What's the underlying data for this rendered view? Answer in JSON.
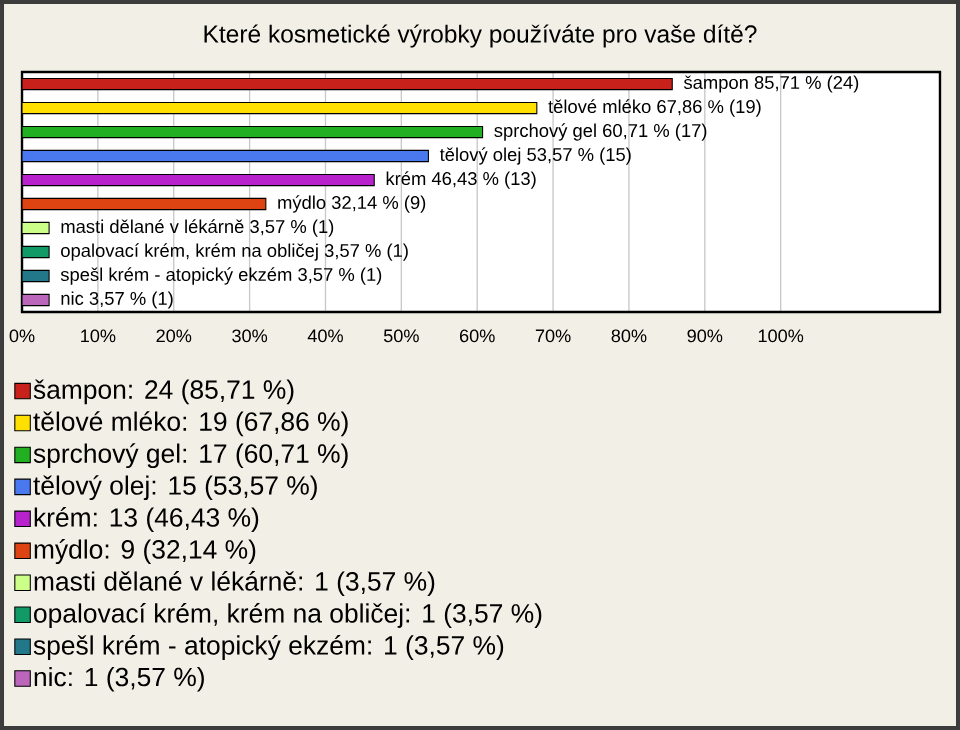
{
  "chart_data": {
    "type": "bar",
    "orientation": "horizontal",
    "title": "Které kosmetické výrobky používáte pro vaše dítě?",
    "categories": [
      null,
      null,
      null,
      null,
      null,
      null,
      null,
      null,
      null,
      null
    ],
    "series": [
      {
        "name": "šampon: 24 (85,71 %)",
        "color": "#c8201a",
        "values": [
          85.71,
          null,
          null,
          null,
          null,
          null,
          null,
          null,
          null,
          null
        ],
        "value_labels": [
          "šampon 85,71 % (24)",
          null,
          null,
          null,
          null,
          null,
          null,
          null,
          null,
          null
        ]
      },
      {
        "name": "tělové mléko: 19 (67,86 %)",
        "color": "#ffe000",
        "values": [
          null,
          67.86,
          null,
          null,
          null,
          null,
          null,
          null,
          null,
          null
        ],
        "value_labels": [
          null,
          "tělové mléko 67,86 % (19)",
          null,
          null,
          null,
          null,
          null,
          null,
          null,
          null
        ]
      },
      {
        "name": "sprchový gel: 17 (60,71 %)",
        "color": "#22b022",
        "values": [
          null,
          null,
          60.71,
          null,
          null,
          null,
          null,
          null,
          null,
          null
        ],
        "value_labels": [
          null,
          null,
          "sprchový gel 60,71 % (17)",
          null,
          null,
          null,
          null,
          null,
          null,
          null
        ]
      },
      {
        "name": "tělový olej: 15 (53,57 %)",
        "color": "#4a78ee",
        "values": [
          null,
          null,
          null,
          53.57,
          null,
          null,
          null,
          null,
          null,
          null
        ],
        "value_labels": [
          null,
          null,
          null,
          "tělový olej 53,57 % (15)",
          null,
          null,
          null,
          null,
          null,
          null
        ]
      },
      {
        "name": "krém: 13 (46,43 %)",
        "color": "#b822cc",
        "values": [
          null,
          null,
          null,
          null,
          46.43,
          null,
          null,
          null,
          null,
          null
        ],
        "value_labels": [
          null,
          null,
          null,
          null,
          "krém 46,43 % (13)",
          null,
          null,
          null,
          null,
          null
        ]
      },
      {
        "name": "mýdlo: 9 (32,14 %)",
        "color": "#dd4411",
        "values": [
          null,
          null,
          null,
          null,
          null,
          32.14,
          null,
          null,
          null,
          null
        ],
        "value_labels": [
          null,
          null,
          null,
          null,
          null,
          "mýdlo 32,14 % (9)",
          null,
          null,
          null,
          null
        ]
      },
      {
        "name": "masti dělané v lékárně: 1 (3,57 %)",
        "color": "#ccff88",
        "values": [
          null,
          null,
          null,
          null,
          null,
          null,
          3.57,
          null,
          null,
          null
        ],
        "value_labels": [
          null,
          null,
          null,
          null,
          null,
          null,
          "masti dělané v lékárně 3,57 % (1)",
          null,
          null,
          null
        ]
      },
      {
        "name": "opalovací krém, krém na obličej: 1 (3,57 %)",
        "color": "#119966",
        "values": [
          null,
          null,
          null,
          null,
          null,
          null,
          null,
          3.57,
          null,
          null
        ],
        "value_labels": [
          null,
          null,
          null,
          null,
          null,
          null,
          null,
          "opalovací krém, krém na obličej 3,57 % (1)",
          null,
          null
        ]
      },
      {
        "name": "spešl krém - atopický ekzém: 1 (3,57 %)",
        "color": "#227788",
        "values": [
          null,
          null,
          null,
          null,
          null,
          null,
          null,
          null,
          3.57,
          null
        ],
        "value_labels": [
          null,
          null,
          null,
          null,
          null,
          null,
          null,
          null,
          "spešl krém - atopický ekzém 3,57 % (1)",
          null
        ]
      },
      {
        "name": "nic: 1 (3,57 %)",
        "color": "#bb66bb",
        "values": [
          null,
          null,
          null,
          null,
          null,
          null,
          null,
          null,
          null,
          3.57
        ],
        "value_labels": [
          null,
          null,
          null,
          null,
          null,
          null,
          null,
          null,
          null,
          "nic 3,57 % (1)"
        ]
      }
    ],
    "xlim": [
      0,
      121
    ],
    "xticks": [
      {
        "value": 0,
        "label": "0%"
      },
      {
        "value": 10,
        "label": "10%"
      },
      {
        "value": 20,
        "label": "20%"
      },
      {
        "value": 30,
        "label": "30%"
      },
      {
        "value": 40,
        "label": "40%"
      },
      {
        "value": 50,
        "label": "50%"
      },
      {
        "value": 60,
        "label": "60%"
      },
      {
        "value": 70,
        "label": "70%"
      },
      {
        "value": 80,
        "label": "80%"
      },
      {
        "value": 90,
        "label": "90%"
      },
      {
        "value": 100,
        "label": "100%"
      }
    ],
    "grid": "x",
    "legend": "bottom"
  }
}
